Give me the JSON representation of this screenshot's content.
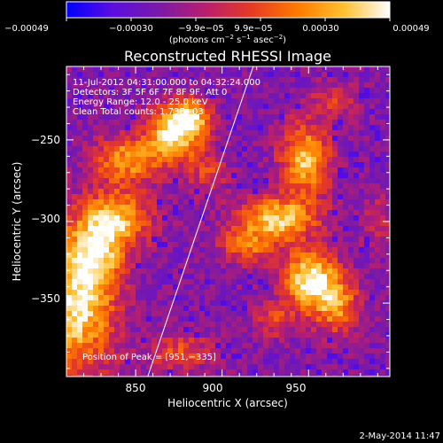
{
  "chart_data": {
    "type": "heatmap",
    "title": "Reconstructed RHESSI Image",
    "xlabel": "Heliocentric X (arcsec)",
    "ylabel": "Heliocentric Y (arcsec)",
    "xlim": [
      810,
      997
    ],
    "ylim": [
      -395,
      -205
    ],
    "x_ticks": [
      850,
      900,
      950
    ],
    "x_tick_labels": [
      "850",
      "900",
      "950"
    ],
    "y_ticks": [
      -250,
      -300,
      -350
    ],
    "y_tick_labels": [
      "−250",
      "−300",
      "−350"
    ],
    "colorbar": {
      "range": [
        -0.00049,
        0.00049
      ],
      "tick_values": [
        -0.00049,
        -0.0003,
        -9.9e-05,
        9.9e-05,
        0.0003,
        0.00049
      ],
      "tick_labels": [
        "−0.00049",
        "−0.00030",
        "−9.9e−05",
        "9.9e−05",
        "0.00030",
        "0.00049"
      ],
      "colormap": [
        "#0000ff",
        "#5a0ee0",
        "#7a1aa8",
        "#b81e6e",
        "#e63a24",
        "#ff7a00",
        "#ffc030",
        "#ffffff"
      ]
    },
    "annotations": [
      "11-Jul-2012 04:31:00.000 to 04:32:24.000",
      "Detectors: 3F 5F 6F 7F 8F 9F, Att 0",
      "Energy Range: 12.0 - 25.0 keV",
      "Clean     Total counts: 1.73E+03"
    ],
    "peak_label": "Position of Peak = [951,−335]",
    "peak": [
      951,
      -335
    ],
    "limb_line": [
      [
        857,
        -395
      ],
      [
        918,
        -205
      ]
    ],
    "intensity_sources": [
      {
        "x": 816,
        "y": -350,
        "sx": 16,
        "sy": 30,
        "a": 0.92
      },
      {
        "x": 840,
        "y": -298,
        "sx": 14,
        "sy": 12,
        "a": 0.72
      },
      {
        "x": 845,
        "y": -262,
        "sx": 14,
        "sy": 10,
        "a": 0.68
      },
      {
        "x": 828,
        "y": -318,
        "sx": 10,
        "sy": 14,
        "a": 0.6
      },
      {
        "x": 872,
        "y": -246,
        "sx": 11,
        "sy": 12,
        "a": 0.88
      },
      {
        "x": 882,
        "y": -236,
        "sx": 8,
        "sy": 8,
        "a": 0.65
      },
      {
        "x": 892,
        "y": -270,
        "sx": 8,
        "sy": 10,
        "a": 0.35
      },
      {
        "x": 948,
        "y": -262,
        "sx": 10,
        "sy": 16,
        "a": 0.82
      },
      {
        "x": 932,
        "y": -298,
        "sx": 16,
        "sy": 9,
        "a": 0.85
      },
      {
        "x": 915,
        "y": -315,
        "sx": 12,
        "sy": 8,
        "a": 0.5
      },
      {
        "x": 951,
        "y": -335,
        "sx": 11,
        "sy": 12,
        "a": 1.0
      },
      {
        "x": 966,
        "y": -352,
        "sx": 10,
        "sy": 12,
        "a": 0.62
      },
      {
        "x": 930,
        "y": -360,
        "sx": 9,
        "sy": 8,
        "a": 0.35
      },
      {
        "x": 876,
        "y": -380,
        "sx": 14,
        "sy": 8,
        "a": 0.42
      },
      {
        "x": 990,
        "y": -300,
        "sx": 7,
        "sy": 12,
        "a": 0.28
      },
      {
        "x": 965,
        "y": -225,
        "sx": 10,
        "sy": 8,
        "a": 0.3
      }
    ]
  },
  "footer": {
    "date": "2-May-2014 11:47"
  }
}
